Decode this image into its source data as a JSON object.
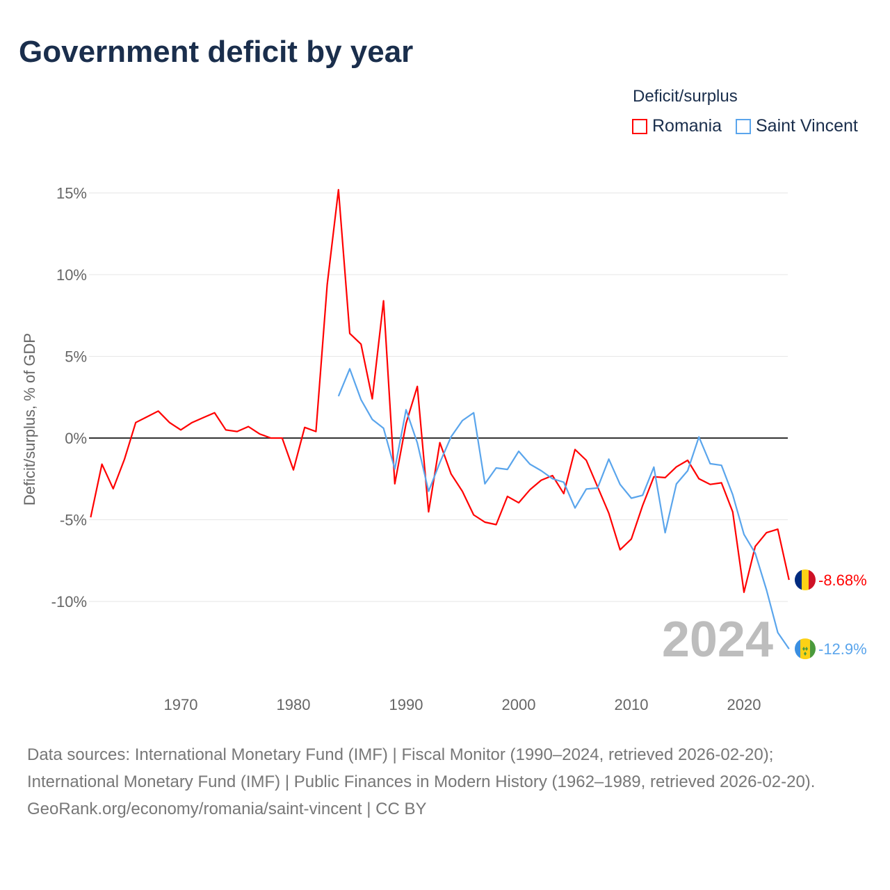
{
  "title": "Government deficit by year",
  "legend": {
    "title": "Deficit/surplus",
    "items": [
      {
        "name": "Romania",
        "color": "#ff0000"
      },
      {
        "name": "Saint Vincent",
        "color": "#5aa5ec"
      }
    ]
  },
  "footer": {
    "sources": "Data sources: International Monetary Fund (IMF) | Fiscal Monitor (1990–2024, retrieved 2026-02-20); International Monetary Fund (IMF) | Public Finances in Modern History (1962–1989, retrieved 2026-02-20).",
    "credit": "GeoRank.org/economy/romania/saint-vincent | CC BY"
  },
  "chart_data": {
    "type": "line",
    "title": "Government deficit by year",
    "ylabel": "Deficit/surplus, % of GDP",
    "xlabel": "",
    "xlim": [
      1962,
      2024
    ],
    "ylim": [
      -14,
      16
    ],
    "x_ticks": [
      "1970",
      "1980",
      "1990",
      "2000",
      "2010",
      "2020"
    ],
    "x_tick_values": [
      1970,
      1980,
      1990,
      2000,
      2010,
      2020
    ],
    "y_ticks": [
      "15%",
      "10%",
      "5%",
      "0%",
      "-5%",
      "-10%"
    ],
    "y_tick_values": [
      15,
      10,
      5,
      0,
      -5,
      -10
    ],
    "year_watermark": "2024",
    "series": [
      {
        "name": "Romania",
        "color": "#ff0000",
        "start": 1962,
        "end_label": "-8.68%",
        "values": [
          -4.85,
          -1.6,
          -3.1,
          -1.3,
          0.95,
          1.3,
          1.65,
          0.95,
          0.5,
          0.95,
          1.25,
          1.55,
          0.5,
          0.4,
          0.7,
          0.25,
          0,
          0,
          -1.95,
          0.65,
          0.4,
          9.4,
          15.2,
          6.4,
          5.75,
          2.4,
          8.4,
          -2.8,
          0.9,
          3.16,
          -4.52,
          -0.28,
          -2.2,
          -3.26,
          -4.7,
          -5.15,
          -5.3,
          -3.57,
          -3.96,
          -3.16,
          -2.58,
          -2.3,
          -3.4,
          -0.7,
          -1.36,
          -2.98,
          -4.6,
          -6.84,
          -6.18,
          -4.13,
          -2.37,
          -2.42,
          -1.76,
          -1.36,
          -2.49,
          -2.84,
          -2.74,
          -4.52,
          -9.44,
          -6.63,
          -5.79,
          -5.58,
          -8.68
        ]
      },
      {
        "name": "Saint Vincent",
        "color": "#5aa5ec",
        "start": 1984,
        "end_label": "-12.9%",
        "values": [
          2.56,
          4.24,
          2.35,
          1.14,
          0.6,
          -1.9,
          1.73,
          -0.3,
          -3.26,
          -1.5,
          0.08,
          1.07,
          1.55,
          -2.8,
          -1.83,
          -1.92,
          -0.81,
          -1.6,
          -2.0,
          -2.49,
          -2.7,
          -4.28,
          -3.12,
          -3.06,
          -1.29,
          -2.84,
          -3.68,
          -3.5,
          -1.78,
          -5.79,
          -2.81,
          -2.0,
          0.07,
          -1.57,
          -1.67,
          -3.47,
          -5.9,
          -7.05,
          -9.3,
          -11.9,
          -12.9
        ]
      }
    ]
  }
}
